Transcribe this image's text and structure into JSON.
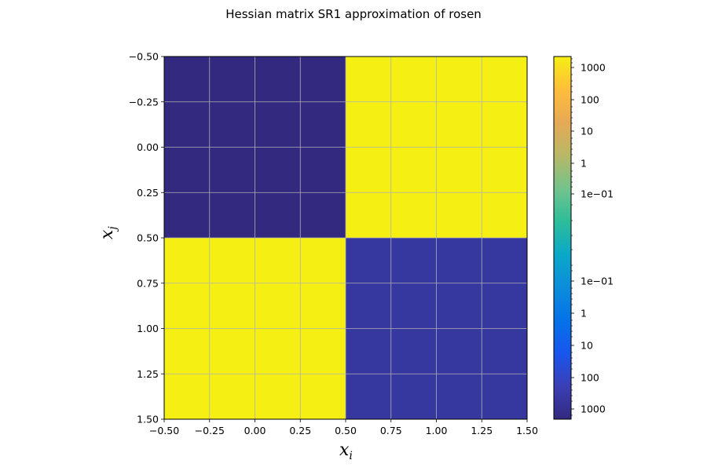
{
  "chart_data": {
    "type": "heatmap",
    "title": "Hessian matrix SR1 approximation of rosen",
    "xlabel": "x",
    "xlabel_sub": "i",
    "ylabel": "x",
    "ylabel_sub": "j",
    "xlim": [
      -0.5,
      1.5
    ],
    "ylim": [
      1.5,
      -0.5
    ],
    "x_ticks": [
      "−0.50",
      "−0.25",
      "0.00",
      "0.25",
      "0.50",
      "0.75",
      "1.00",
      "1.25",
      "1.50"
    ],
    "y_ticks": [
      "−0.50",
      "−0.25",
      "0.00",
      "0.25",
      "0.50",
      "0.75",
      "1.00",
      "1.25",
      "1.50"
    ],
    "grid": true,
    "cells": [
      {
        "row": 0,
        "col": 0,
        "color": "#33297f"
      },
      {
        "row": 0,
        "col": 1,
        "color": "#f5ef14"
      },
      {
        "row": 1,
        "col": 0,
        "color": "#f5ef14"
      },
      {
        "row": 1,
        "col": 1,
        "color": "#36379f"
      }
    ],
    "colorbar": {
      "scale": "symlog",
      "tick_labels": [
        "1000",
        "100",
        "10",
        "1",
        "1e−01",
        "1e−01",
        "1",
        "10",
        "100",
        "1000"
      ],
      "gradient_top_to_bottom": [
        "#f5ef14",
        "#ffbd3b",
        "#e6a955",
        "#b8b866",
        "#73c38c",
        "#2dbd9a",
        "#0aa8c8",
        "#0c8ddb",
        "#0572e8",
        "#1856ee",
        "#3b3fb5",
        "#33297f"
      ]
    }
  }
}
